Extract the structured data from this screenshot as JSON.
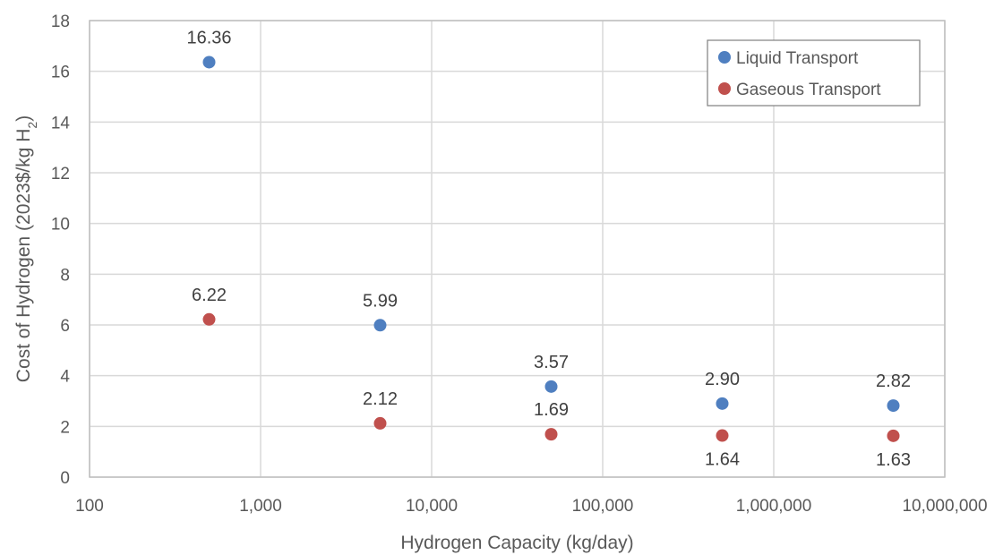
{
  "chart_data": {
    "type": "scatter",
    "xlabel": "Hydrogen Capacity (kg/day)",
    "ylabel": "Cost of Hydrogen (2023$/kg H",
    "ylabel_subscript": "2",
    "ylabel_suffix": ")",
    "x_scale": "log",
    "xlim": [
      100,
      10000000
    ],
    "ylim": [
      0,
      18
    ],
    "y_ticks": [
      0,
      2,
      4,
      6,
      8,
      10,
      12,
      14,
      16,
      18
    ],
    "x_ticks": [
      100,
      1000,
      10000,
      100000,
      1000000,
      10000000
    ],
    "x_tick_labels": [
      "100",
      "1,000",
      "10,000",
      "100,000",
      "1,000,000",
      "10,000,000"
    ],
    "grid": true,
    "legend_position": "top-right",
    "series": [
      {
        "name": "Liquid Transport",
        "color": "#4f7fc0",
        "points": [
          {
            "x": 500,
            "y": 16.36,
            "label": "16.36",
            "label_position": "above"
          },
          {
            "x": 5000,
            "y": 5.99,
            "label": "5.99",
            "label_position": "above"
          },
          {
            "x": 50000,
            "y": 3.57,
            "label": "3.57",
            "label_position": "above"
          },
          {
            "x": 500000,
            "y": 2.9,
            "label": "2.90",
            "label_position": "above"
          },
          {
            "x": 5000000,
            "y": 2.82,
            "label": "2.82",
            "label_position": "above"
          }
        ]
      },
      {
        "name": "Gaseous Transport",
        "color": "#c0504d",
        "points": [
          {
            "x": 500,
            "y": 6.22,
            "label": "6.22",
            "label_position": "above"
          },
          {
            "x": 5000,
            "y": 2.12,
            "label": "2.12",
            "label_position": "above"
          },
          {
            "x": 50000,
            "y": 1.69,
            "label": "1.69",
            "label_position": "above"
          },
          {
            "x": 500000,
            "y": 1.64,
            "label": "1.64",
            "label_position": "below"
          },
          {
            "x": 5000000,
            "y": 1.63,
            "label": "1.63",
            "label_position": "below"
          }
        ]
      }
    ]
  }
}
